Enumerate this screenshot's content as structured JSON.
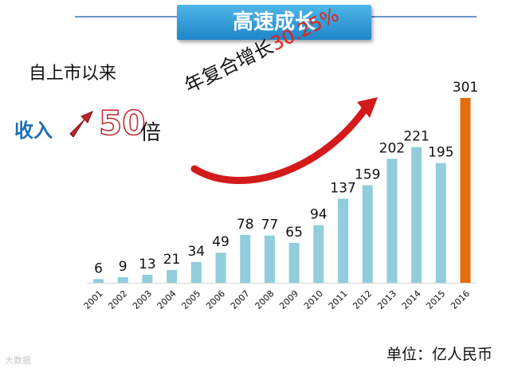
{
  "header": {
    "title": "高速成长"
  },
  "annotations": {
    "since_listing": "自上市以来",
    "income_label": "收入",
    "multiple_value": "50",
    "multiple_unit": "倍",
    "cagr_text": "年复合增长",
    "cagr_value": "30.25%",
    "unit_text": "单位：亿人民币",
    "watermark": "大数据"
  },
  "colors": {
    "bar": "#92cddc",
    "highlight_bar": "#e46c0a",
    "accent_red": "#e22218",
    "banner": "#2a9ad6"
  },
  "chart_data": {
    "type": "bar",
    "title": "高速成长",
    "categories": [
      "2001",
      "2002",
      "2003",
      "2004",
      "2005",
      "2006",
      "2007",
      "2008",
      "2009",
      "2010",
      "2011",
      "2012",
      "2013",
      "2014",
      "2015",
      "2016"
    ],
    "values": [
      6,
      9,
      13,
      21,
      34,
      49,
      78,
      77,
      65,
      94,
      137,
      159,
      202,
      221,
      195,
      301
    ],
    "ylabel": "单位：亿人民币",
    "ylim": [
      0,
      301
    ],
    "highlight_category": "2016",
    "grid": false
  }
}
